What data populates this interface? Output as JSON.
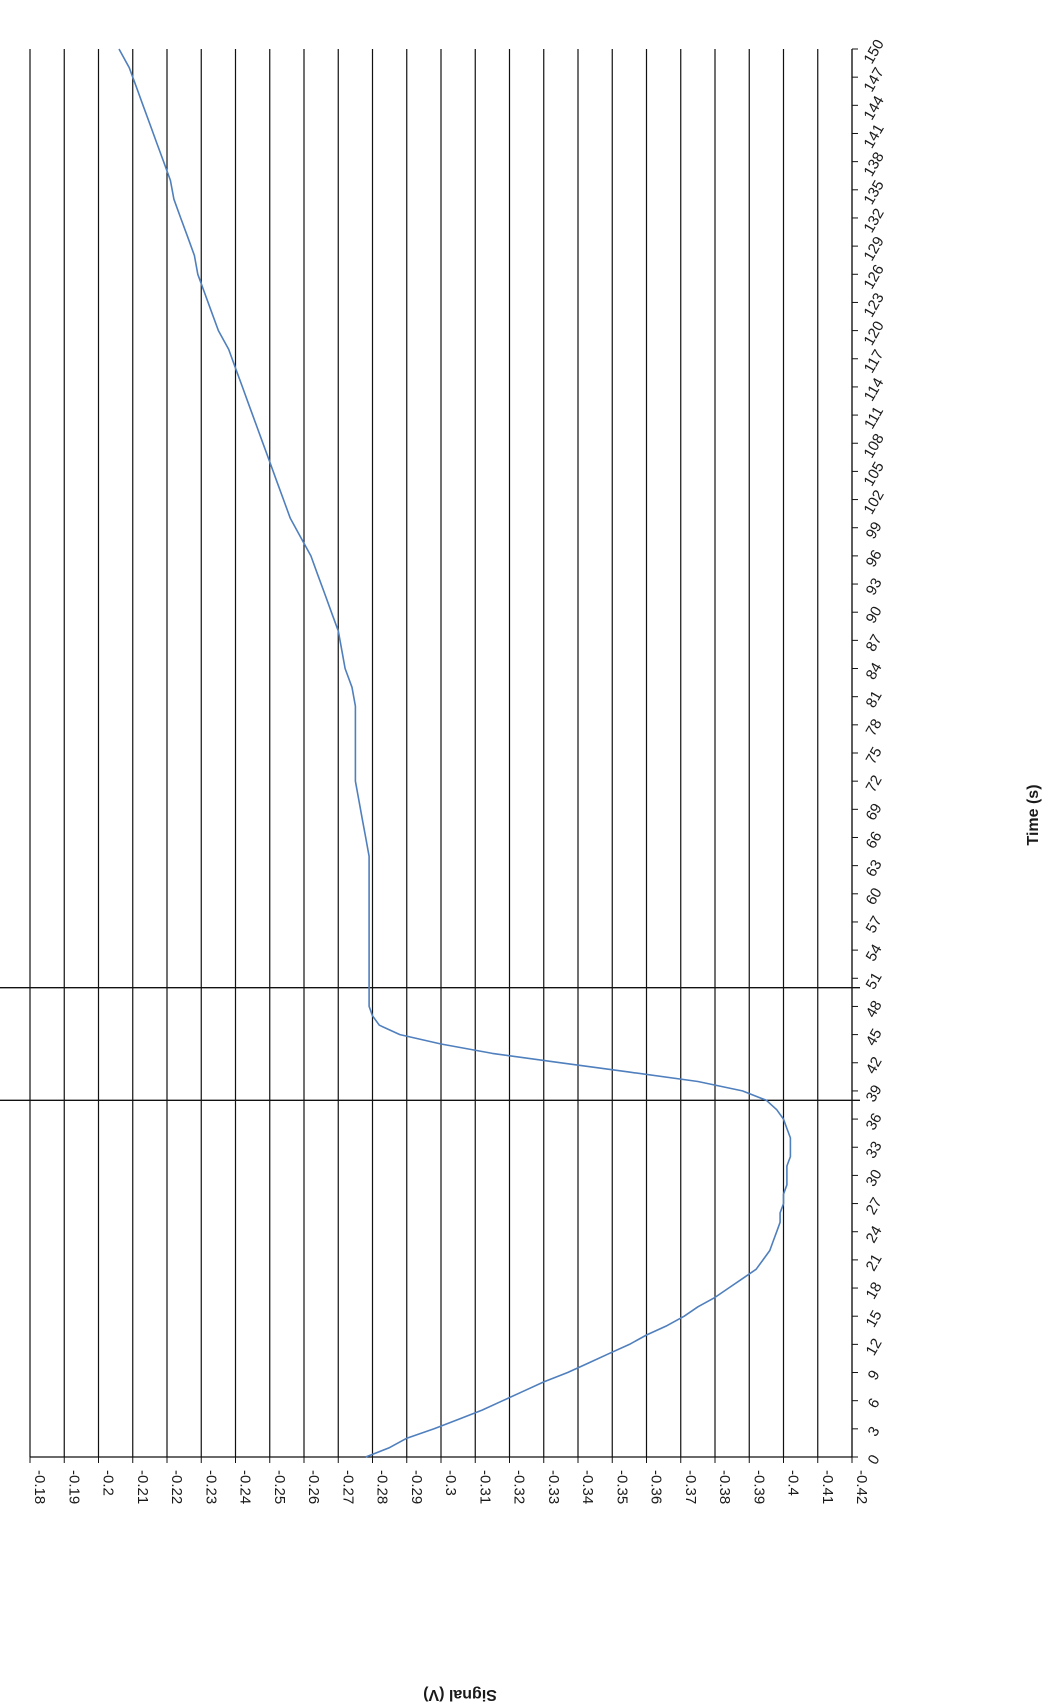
{
  "chart_data": {
    "type": "line",
    "title": "",
    "xlabel": "Time (s)",
    "ylabel": "Signal (V)",
    "orientation": "rotated-90-clockwise",
    "xlim": [
      0,
      150
    ],
    "ylim": [
      -0.42,
      -0.18
    ],
    "x_ticks": [
      "0",
      "3",
      "6",
      "9",
      "12",
      "15",
      "18",
      "21",
      "24",
      "27",
      "30",
      "33",
      "36",
      "39",
      "42",
      "45",
      "48",
      "51",
      "54",
      "57",
      "60",
      "63",
      "66",
      "69",
      "72",
      "75",
      "78",
      "81",
      "84",
      "87",
      "90",
      "93",
      "96",
      "99",
      "102",
      "105",
      "108",
      "111",
      "114",
      "117",
      "120",
      "123",
      "126",
      "129",
      "132",
      "135",
      "138",
      "141",
      "144",
      "147",
      "150"
    ],
    "y_ticks": [
      "-0.18",
      "-0.19",
      "-0.2",
      "-0.21",
      "-0.22",
      "-0.23",
      "-0.24",
      "-0.25",
      "-0.26",
      "-0.27",
      "-0.28",
      "-0.29",
      "-0.3",
      "-0.31",
      "-0.32",
      "-0.33",
      "-0.34",
      "-0.35",
      "-0.36",
      "-0.37",
      "-0.38",
      "-0.39",
      "-0.4",
      "-0.41",
      "-0.42"
    ],
    "grid": true,
    "legend": "none",
    "marker_lines_x": [
      38,
      50
    ],
    "series_color": "#4f7fbd",
    "series": [
      {
        "x": [
          0,
          1,
          2,
          3,
          4,
          5,
          6,
          7,
          8,
          9,
          10,
          11,
          12,
          13,
          14,
          15,
          16,
          17,
          18,
          19,
          20,
          21,
          22,
          23,
          24,
          25,
          26,
          27,
          28,
          29,
          30,
          31,
          32,
          33,
          34,
          35,
          36,
          37,
          38,
          39,
          40,
          41,
          42,
          43,
          44,
          45,
          46,
          47,
          48,
          49,
          50,
          52,
          54,
          56,
          58,
          60,
          62,
          64,
          66,
          68,
          70,
          72,
          74,
          76,
          78,
          80,
          82,
          84,
          86,
          88,
          90,
          92,
          94,
          96,
          98,
          100,
          102,
          104,
          106,
          108,
          110,
          112,
          114,
          116,
          118,
          120,
          122,
          124,
          126,
          128,
          130,
          132,
          134,
          136,
          138,
          140,
          142,
          144,
          146,
          148,
          150
        ],
        "values": [
          -0.278,
          -0.285,
          -0.29,
          -0.298,
          -0.305,
          -0.312,
          -0.318,
          -0.324,
          -0.33,
          -0.337,
          -0.343,
          -0.349,
          -0.355,
          -0.36,
          -0.366,
          -0.371,
          -0.375,
          -0.38,
          -0.384,
          -0.388,
          -0.392,
          -0.394,
          -0.396,
          -0.397,
          -0.398,
          -0.399,
          -0.399,
          -0.4,
          -0.4,
          -0.401,
          -0.401,
          -0.401,
          -0.402,
          -0.402,
          -0.402,
          -0.401,
          -0.4,
          -0.398,
          -0.395,
          -0.388,
          -0.375,
          -0.355,
          -0.335,
          -0.315,
          -0.3,
          -0.288,
          -0.282,
          -0.28,
          -0.279,
          -0.279,
          -0.279,
          -0.279,
          -0.279,
          -0.279,
          -0.279,
          -0.279,
          -0.279,
          -0.279,
          -0.278,
          -0.277,
          -0.276,
          -0.275,
          -0.275,
          -0.275,
          -0.275,
          -0.275,
          -0.274,
          -0.272,
          -0.271,
          -0.27,
          -0.268,
          -0.266,
          -0.264,
          -0.262,
          -0.259,
          -0.256,
          -0.254,
          -0.252,
          -0.25,
          -0.248,
          -0.246,
          -0.244,
          -0.242,
          -0.24,
          -0.238,
          -0.235,
          -0.233,
          -0.231,
          -0.229,
          -0.228,
          -0.226,
          -0.224,
          -0.222,
          -0.221,
          -0.219,
          -0.217,
          -0.215,
          -0.213,
          -0.211,
          -0.209,
          -0.206
        ]
      }
    ]
  }
}
